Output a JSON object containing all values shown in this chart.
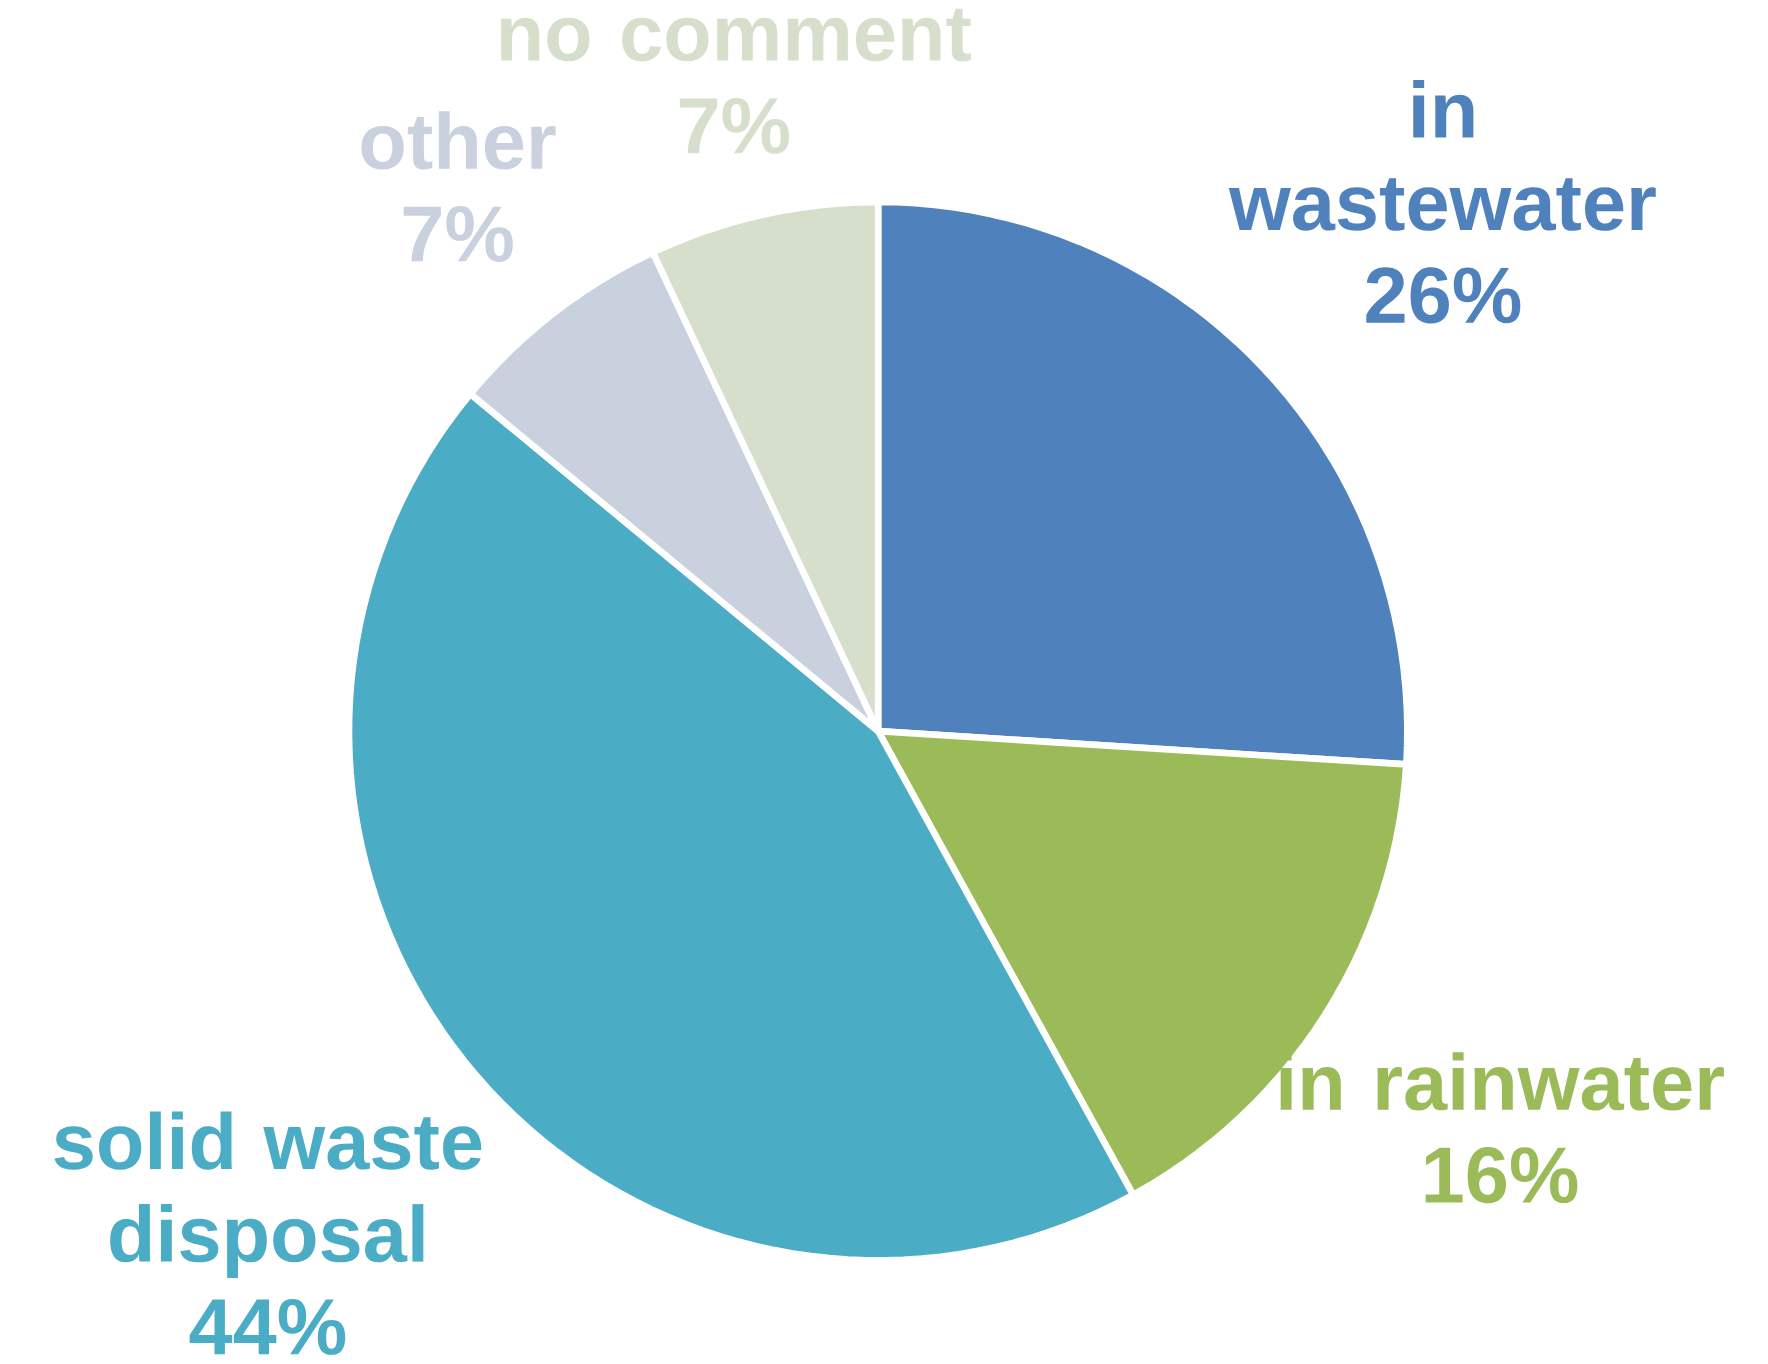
{
  "chart_data": {
    "type": "pie",
    "categories": [
      "in wastewater",
      "in rainwater",
      "solid waste disposal",
      "other",
      "no comment"
    ],
    "values": [
      26,
      16,
      44,
      7,
      7
    ],
    "colors": [
      "#4f81bd",
      "#9bbb59",
      "#4bacc6",
      "#c9d1de",
      "#d6dfcc"
    ],
    "value_labels": [
      "26%",
      "16%",
      "44%",
      "7%",
      "7%"
    ]
  }
}
